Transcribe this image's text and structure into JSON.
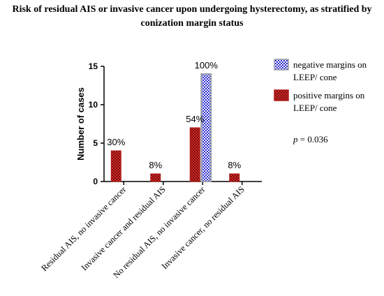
{
  "title_lines": [
    "Risk of residual AIS or invasive cancer upon undergoing hysterectomy, as stratified by",
    "conization margin status"
  ],
  "colors": {
    "positive": "#b01818",
    "negative": "#3333cc",
    "axis": "#000000"
  },
  "p_value": {
    "label": "p",
    "text": " = 0.036"
  },
  "chart_data": {
    "type": "bar",
    "title": "Risk of residual AIS or invasive cancer upon undergoing hysterectomy, as stratified by conization margin status",
    "xlabel": "",
    "ylabel": "Number of cases",
    "ylim": [
      0,
      15
    ],
    "yticks": [
      0,
      5,
      10,
      15
    ],
    "categories": [
      "Residual AIS, no invasive cancer",
      "Invasive cancer and residual AIS",
      "No residual AIS, no invasive cancer",
      "Invasive cancer, no residual AIS"
    ],
    "series": [
      {
        "name": "positive margins on LEEP/ cone",
        "values": [
          4,
          1,
          7,
          1
        ],
        "labels": [
          "30%",
          "8%",
          "54%",
          "8%"
        ]
      },
      {
        "name": "negative margins on LEEP/ cone",
        "values": [
          0,
          0,
          14,
          0
        ],
        "labels": [
          "",
          "",
          "100%",
          ""
        ]
      }
    ],
    "legend_lines": [
      [
        "negative margins on",
        "LEEP/ cone"
      ],
      [
        "positive margins on",
        "LEEP/ cone"
      ]
    ],
    "legend_position": "right",
    "grid": false
  }
}
